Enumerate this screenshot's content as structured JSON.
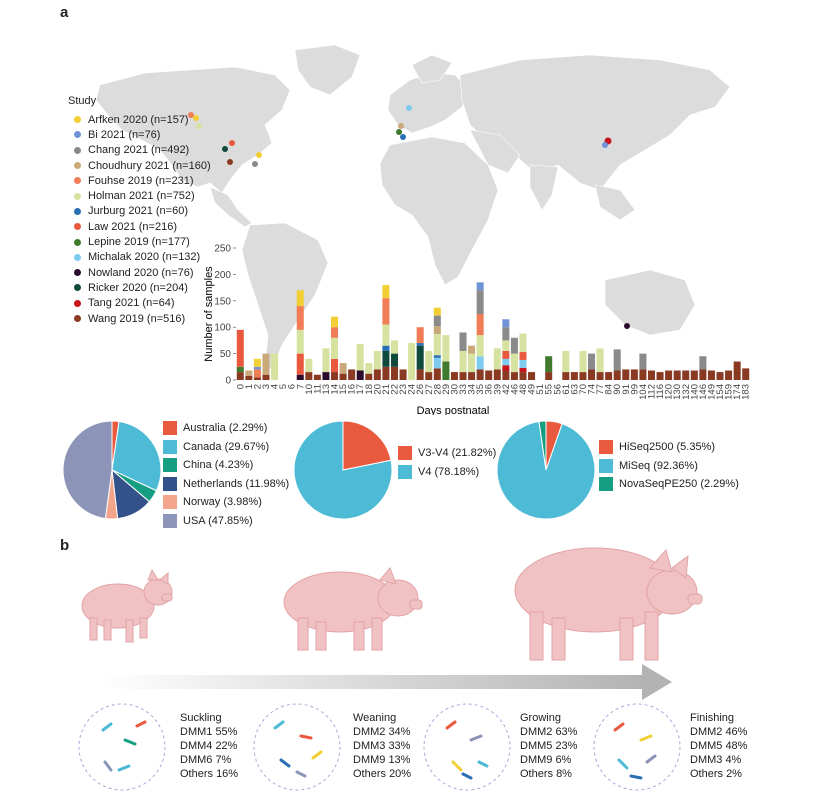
{
  "panel_a": {
    "label": "a",
    "legend": {
      "title": "Study",
      "items": [
        {
          "label": "Arfken 2020 (n=157)",
          "color": "#f2cf35"
        },
        {
          "label": "Bi 2021 (n=76)",
          "color": "#6f93d6"
        },
        {
          "label": "Chang 2021 (n=492)",
          "color": "#8a8a8a"
        },
        {
          "label": "Choudhury 2021 (n=160)",
          "color": "#c9a879"
        },
        {
          "label": "Fouhse 2019 (n=231)",
          "color": "#f07d55"
        },
        {
          "label": "Holman 2021 (n=752)",
          "color": "#d5e2a0"
        },
        {
          "label": "Jurburg 2021 (n=60)",
          "color": "#2b6fb4"
        },
        {
          "label": "Law 2021 (n=216)",
          "color": "#e8593e"
        },
        {
          "label": "Lepine 2019 (n=177)",
          "color": "#3f7a2e"
        },
        {
          "label": "Michalak 2020 (n=132)",
          "color": "#7ecbf0"
        },
        {
          "label": "Nowland 2020 (n=76)",
          "color": "#2a0b2e"
        },
        {
          "label": "Ricker 2020 (n=204)",
          "color": "#0f4a3c"
        },
        {
          "label": "Tang 2021 (n=64)",
          "color": "#c8141b"
        },
        {
          "label": "Wang 2019 (n=516)",
          "color": "#8a3a23"
        }
      ]
    },
    "y_axis_label": "Number of samples",
    "x_axis_label": "Days postnatal"
  },
  "chart_data": [
    {
      "type": "bar",
      "stacked": true,
      "xlabel": "Days postnatal",
      "ylabel": "Number of samples",
      "ylim": [
        0,
        250
      ],
      "yticks": [
        0,
        50,
        100,
        150,
        200,
        250
      ],
      "categories": [
        "0",
        "1",
        "2",
        "3",
        "4",
        "5",
        "6",
        "7",
        "10",
        "11",
        "13",
        "14",
        "15",
        "16",
        "17",
        "18",
        "20",
        "21",
        "22",
        "23",
        "24",
        "26",
        "27",
        "28",
        "29",
        "30",
        "33",
        "34",
        "35",
        "36",
        "39",
        "42",
        "46",
        "48",
        "49",
        "51",
        "55",
        "56",
        "61",
        "63",
        "70",
        "74",
        "77",
        "84",
        "90",
        "91",
        "99",
        "104",
        "112",
        "116",
        "120",
        "130",
        "132",
        "140",
        "146",
        "149",
        "154",
        "159",
        "174",
        "183"
      ],
      "series": [
        {
          "name": "Wang 2019 (n=516)",
          "color": "#8a3a23",
          "values": [
            15,
            8,
            5,
            10,
            0,
            0,
            0,
            0,
            15,
            10,
            0,
            15,
            12,
            20,
            0,
            12,
            20,
            25,
            25,
            20,
            0,
            20,
            15,
            22,
            0,
            15,
            15,
            15,
            20,
            18,
            20,
            18,
            15,
            15,
            15,
            0,
            15,
            0,
            15,
            15,
            15,
            20,
            15,
            15,
            18,
            20,
            20,
            20,
            18,
            15,
            18,
            18,
            18,
            18,
            20,
            18,
            15,
            18,
            35,
            22
          ]
        },
        {
          "name": "Tang 2021 (n=64)",
          "color": "#c8141b",
          "values": [
            0,
            0,
            0,
            0,
            0,
            0,
            0,
            0,
            0,
            0,
            0,
            0,
            0,
            0,
            0,
            0,
            0,
            0,
            0,
            0,
            0,
            0,
            0,
            0,
            0,
            0,
            0,
            0,
            0,
            0,
            0,
            10,
            0,
            8,
            0,
            0,
            0,
            0,
            0,
            0,
            0,
            0,
            0,
            0,
            0,
            0,
            0,
            0,
            0,
            0,
            0,
            0,
            0,
            0,
            0,
            0,
            0,
            0,
            0,
            0
          ]
        },
        {
          "name": "Ricker 2020 (n=204)",
          "color": "#0f4a3c",
          "values": [
            0,
            0,
            0,
            0,
            0,
            0,
            0,
            0,
            0,
            0,
            0,
            0,
            0,
            0,
            0,
            0,
            0,
            30,
            25,
            0,
            0,
            45,
            0,
            0,
            0,
            0,
            0,
            0,
            0,
            0,
            0,
            0,
            0,
            0,
            0,
            0,
            0,
            0,
            0,
            0,
            0,
            0,
            0,
            0,
            0,
            0,
            0,
            0,
            0,
            0,
            0,
            0,
            0,
            0,
            0,
            0,
            0,
            0,
            0,
            0
          ]
        },
        {
          "name": "Nowland 2020 (n=76)",
          "color": "#2a0b2e",
          "values": [
            0,
            0,
            0,
            0,
            0,
            0,
            0,
            10,
            0,
            0,
            15,
            0,
            0,
            0,
            18,
            0,
            0,
            0,
            0,
            0,
            0,
            0,
            0,
            0,
            0,
            0,
            0,
            0,
            0,
            0,
            0,
            0,
            0,
            0,
            0,
            0,
            0,
            0,
            0,
            0,
            0,
            0,
            0,
            0,
            0,
            0,
            0,
            0,
            0,
            0,
            0,
            0,
            0,
            0,
            0,
            0,
            0,
            0,
            0,
            0
          ]
        },
        {
          "name": "Michalak 2020 (n=132)",
          "color": "#7ecbf0",
          "values": [
            0,
            0,
            0,
            0,
            0,
            0,
            0,
            0,
            0,
            0,
            0,
            0,
            0,
            0,
            0,
            0,
            0,
            0,
            0,
            0,
            0,
            0,
            0,
            20,
            0,
            0,
            0,
            0,
            25,
            0,
            0,
            12,
            0,
            15,
            0,
            0,
            0,
            0,
            0,
            0,
            0,
            0,
            0,
            0,
            0,
            0,
            0,
            0,
            0,
            0,
            0,
            0,
            0,
            0,
            0,
            0,
            0,
            0,
            0,
            0
          ]
        },
        {
          "name": "Lepine 2019 (n=177)",
          "color": "#3f7a2e",
          "values": [
            10,
            0,
            0,
            0,
            0,
            0,
            0,
            0,
            0,
            0,
            0,
            0,
            0,
            0,
            0,
            0,
            0,
            0,
            0,
            0,
            0,
            0,
            0,
            0,
            35,
            0,
            0,
            0,
            0,
            0,
            0,
            0,
            0,
            0,
            0,
            0,
            30,
            0,
            0,
            0,
            0,
            0,
            0,
            0,
            0,
            0,
            0,
            0,
            0,
            0,
            0,
            0,
            0,
            0,
            0,
            0,
            0,
            0,
            0,
            0
          ]
        },
        {
          "name": "Law 2021 (n=216)",
          "color": "#e8593e",
          "values": [
            70,
            0,
            0,
            0,
            0,
            0,
            0,
            40,
            0,
            0,
            0,
            25,
            0,
            0,
            0,
            0,
            0,
            0,
            0,
            0,
            0,
            0,
            0,
            0,
            0,
            0,
            0,
            0,
            0,
            0,
            0,
            15,
            0,
            15,
            0,
            0,
            0,
            0,
            0,
            0,
            0,
            0,
            0,
            0,
            0,
            0,
            0,
            0,
            0,
            0,
            0,
            0,
            0,
            0,
            0,
            0,
            0,
            0,
            0,
            0
          ]
        },
        {
          "name": "Jurburg 2021 (n=60)",
          "color": "#2b6fb4",
          "values": [
            0,
            0,
            0,
            0,
            0,
            0,
            0,
            0,
            0,
            0,
            0,
            0,
            0,
            0,
            0,
            0,
            0,
            10,
            0,
            0,
            0,
            5,
            0,
            5,
            0,
            0,
            0,
            0,
            0,
            0,
            0,
            0,
            0,
            0,
            0,
            0,
            0,
            0,
            0,
            0,
            0,
            0,
            0,
            0,
            0,
            0,
            0,
            0,
            0,
            0,
            0,
            0,
            0,
            0,
            0,
            0,
            0,
            0,
            0,
            0
          ]
        },
        {
          "name": "Holman 2021 (n=752)",
          "color": "#d5e2a0",
          "values": [
            0,
            0,
            0,
            0,
            50,
            0,
            0,
            45,
            25,
            0,
            45,
            40,
            0,
            0,
            50,
            20,
            35,
            40,
            25,
            0,
            70,
            0,
            40,
            40,
            50,
            0,
            40,
            35,
            40,
            0,
            40,
            20,
            35,
            35,
            0,
            0,
            0,
            0,
            40,
            0,
            40,
            0,
            45,
            0,
            0,
            0,
            0,
            0,
            0,
            0,
            0,
            0,
            0,
            0,
            0,
            0,
            0,
            0,
            0,
            0
          ]
        },
        {
          "name": "Fouhse 2019 (n=231)",
          "color": "#f07d55",
          "values": [
            0,
            0,
            15,
            0,
            0,
            0,
            0,
            45,
            0,
            0,
            0,
            20,
            0,
            0,
            0,
            0,
            0,
            50,
            0,
            0,
            0,
            30,
            0,
            0,
            0,
            0,
            0,
            0,
            40,
            0,
            0,
            0,
            0,
            0,
            0,
            0,
            0,
            0,
            0,
            0,
            0,
            0,
            0,
            0,
            0,
            0,
            0,
            0,
            0,
            0,
            0,
            0,
            0,
            0,
            0,
            0,
            0,
            0,
            0,
            0
          ]
        },
        {
          "name": "Choudhury 2021 (n=160)",
          "color": "#c9a879",
          "values": [
            0,
            10,
            0,
            40,
            0,
            0,
            0,
            0,
            0,
            0,
            0,
            0,
            20,
            0,
            0,
            0,
            0,
            0,
            0,
            0,
            0,
            0,
            0,
            15,
            0,
            0,
            0,
            15,
            0,
            0,
            0,
            0,
            0,
            0,
            0,
            0,
            0,
            0,
            0,
            0,
            0,
            0,
            0,
            0,
            0,
            0,
            0,
            0,
            0,
            0,
            0,
            0,
            0,
            0,
            0,
            0,
            0,
            0,
            0,
            0
          ]
        },
        {
          "name": "Chang 2021 (n=492)",
          "color": "#8a8a8a",
          "values": [
            0,
            0,
            0,
            0,
            0,
            0,
            0,
            0,
            0,
            0,
            0,
            0,
            0,
            0,
            0,
            0,
            0,
            0,
            0,
            0,
            0,
            0,
            0,
            20,
            0,
            0,
            35,
            0,
            45,
            0,
            0,
            25,
            30,
            0,
            0,
            0,
            0,
            0,
            0,
            0,
            0,
            30,
            0,
            0,
            40,
            0,
            0,
            30,
            0,
            0,
            0,
            0,
            0,
            0,
            25,
            0,
            0,
            0,
            0,
            0
          ]
        },
        {
          "name": "Bi 2021 (n=76)",
          "color": "#6f93d6",
          "values": [
            0,
            0,
            5,
            0,
            0,
            0,
            0,
            0,
            0,
            0,
            0,
            0,
            0,
            0,
            0,
            0,
            0,
            0,
            0,
            0,
            0,
            0,
            0,
            0,
            0,
            0,
            0,
            0,
            15,
            0,
            0,
            15,
            0,
            0,
            0,
            0,
            0,
            0,
            0,
            0,
            0,
            0,
            0,
            0,
            0,
            0,
            0,
            0,
            0,
            0,
            0,
            0,
            0,
            0,
            0,
            0,
            0,
            0,
            0,
            0
          ]
        },
        {
          "name": "Arfken 2020 (n=157)",
          "color": "#f2cf35",
          "values": [
            0,
            0,
            15,
            0,
            0,
            0,
            0,
            30,
            0,
            0,
            0,
            20,
            0,
            0,
            0,
            0,
            0,
            25,
            0,
            0,
            0,
            0,
            0,
            15,
            0,
            0,
            0,
            0,
            0,
            0,
            0,
            0,
            0,
            0,
            0,
            0,
            0,
            0,
            0,
            0,
            0,
            0,
            0,
            0,
            0,
            0,
            0,
            0,
            0,
            0,
            0,
            0,
            0,
            0,
            0,
            0,
            0,
            0,
            0,
            0
          ]
        }
      ]
    },
    {
      "type": "pie",
      "labels": [
        "Australia",
        "Canada",
        "China",
        "Netherlands",
        "Norway",
        "USA"
      ],
      "legend_labels": [
        "Australia (2.29%)",
        "Canada (29.67%)",
        "China (4.23%)",
        "Netherlands (11.98%)",
        "Norway (3.98%)",
        "USA (47.85%)"
      ],
      "values": [
        2.29,
        29.67,
        4.23,
        11.98,
        3.98,
        47.85
      ],
      "colors": [
        "#e8593e",
        "#4ebbd6",
        "#169e82",
        "#34528a",
        "#f3a58c",
        "#8c95b8"
      ]
    },
    {
      "type": "pie",
      "labels": [
        "V3-V4",
        "V4"
      ],
      "legend_labels": [
        "V3-V4 (21.82%)",
        "V4 (78.18%)"
      ],
      "values": [
        21.82,
        78.18
      ],
      "colors": [
        "#e8593e",
        "#4ebbd6"
      ]
    },
    {
      "type": "pie",
      "labels": [
        "HiSeq2500",
        "MiSeq",
        "NovaSeqPE250"
      ],
      "legend_labels": [
        "HiSeq2500 (5.35%)",
        "MiSeq (92.36%)",
        "NovaSeqPE250 (2.29%)"
      ],
      "values": [
        5.35,
        92.36,
        2.29
      ],
      "colors": [
        "#e8593e",
        "#4ebbd6",
        "#169e82"
      ]
    }
  ],
  "panel_b": {
    "label": "b",
    "stages": [
      {
        "name": "Suckling",
        "lines": [
          "DMM1 55%",
          "DMM4 22%",
          "DMM6 7%",
          "Others 16%"
        ]
      },
      {
        "name": "Weaning",
        "lines": [
          "DMM2 34%",
          "DMM3 33%",
          "DMM9 13%",
          "Others 20%"
        ]
      },
      {
        "name": "Growing",
        "lines": [
          "DMM2 63%",
          "DMM5 23%",
          "DMM9 6%",
          "Others 8%"
        ]
      },
      {
        "name": "Finishing",
        "lines": [
          "DMM2 46%",
          "DMM5 48%",
          "DMM3 4%",
          "Others 2%"
        ]
      }
    ]
  }
}
